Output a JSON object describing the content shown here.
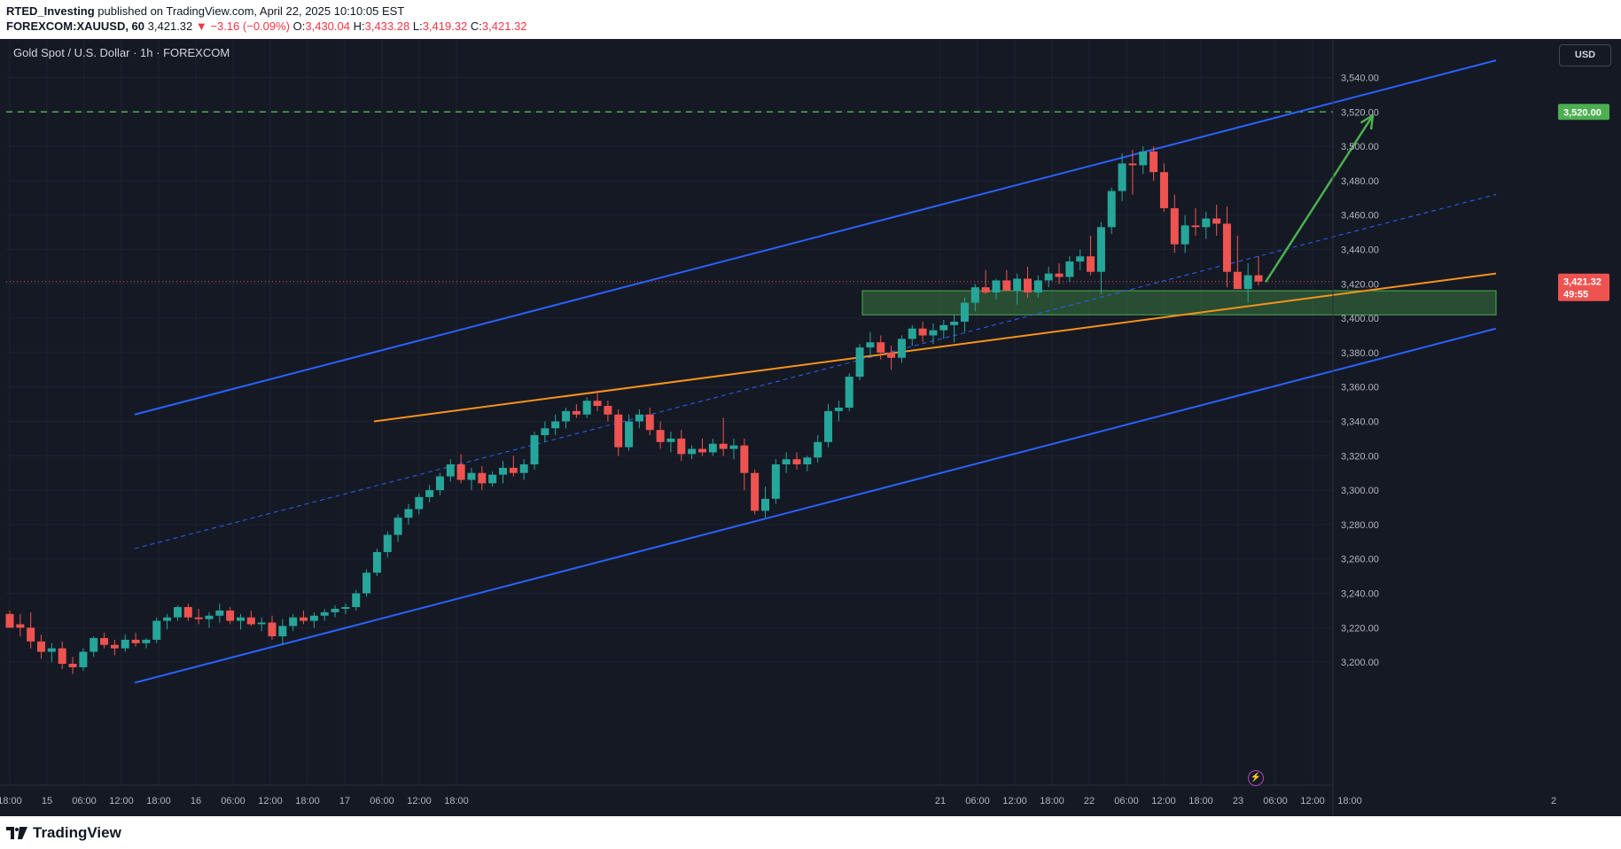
{
  "header": {
    "publisher": "RTED_Investing",
    "published_text": " published on TradingView.com, April 22, 2025 10:10:05 EST",
    "symbol": "FOREXCOM:XAUUSD, 60",
    "last": "3,421.32",
    "change": "−3.16 (−0.09%)",
    "o_label": "O:",
    "o_value": "3,430.04",
    "h_label": "H:",
    "h_value": "3,433.28",
    "l_label": "L:",
    "l_value": "3,419.32",
    "c_label": "C:",
    "c_value": "3,421.32"
  },
  "chart_title": "Gold Spot / U.S. Dollar · 1h · FOREXCOM",
  "currency": "USD",
  "footer_logo": "TradingView",
  "colors": {
    "background": "#151924",
    "up": "#26a69a",
    "down": "#ef5350",
    "channel": "#2962ff",
    "trendline": "#f7931a",
    "target": "#4caf50",
    "price_line": "#ef5350"
  },
  "chart_data": {
    "type": "candlestick",
    "title": "Gold Spot / U.S. Dollar · 1h · FOREXCOM",
    "ylim": [
      3190,
      3560
    ],
    "y_ticks": [
      "3,200.00",
      "3,220.00",
      "3,240.00",
      "3,260.00",
      "3,280.00",
      "3,300.00",
      "3,320.00",
      "3,340.00",
      "3,360.00",
      "3,380.00",
      "3,400.00",
      "3,420.00",
      "3,440.00",
      "3,460.00",
      "3,480.00",
      "3,500.00",
      "3,520.00",
      "3,540.00"
    ],
    "x_ticks": [
      "18:00",
      "15",
      "06:00",
      "12:00",
      "18:00",
      "16",
      "06:00",
      "12:00",
      "18:00",
      "17",
      "06:00",
      "12:00",
      "18:00",
      "21",
      "06:00",
      "12:00",
      "18:00",
      "22",
      "06:00",
      "12:00",
      "18:00",
      "23",
      "06:00",
      "12:00",
      "18:00",
      "2"
    ],
    "candles": [
      [
        3228,
        3230,
        3222,
        3220
      ],
      [
        3222,
        3228,
        3215,
        3220
      ],
      [
        3220,
        3229,
        3208,
        3212
      ],
      [
        3212,
        3216,
        3202,
        3206
      ],
      [
        3206,
        3211,
        3200,
        3208
      ],
      [
        3208,
        3212,
        3196,
        3199
      ],
      [
        3199,
        3203,
        3193,
        3197
      ],
      [
        3197,
        3208,
        3195,
        3206
      ],
      [
        3206,
        3215,
        3203,
        3214
      ],
      [
        3214,
        3217,
        3208,
        3210
      ],
      [
        3210,
        3213,
        3204,
        3208
      ],
      [
        3208,
        3216,
        3206,
        3213
      ],
      [
        3213,
        3217,
        3209,
        3211
      ],
      [
        3211,
        3214,
        3208,
        3213
      ],
      [
        3213,
        3226,
        3211,
        3224
      ],
      [
        3224,
        3228,
        3219,
        3226
      ],
      [
        3226,
        3233,
        3224,
        3232
      ],
      [
        3232,
        3234,
        3224,
        3226
      ],
      [
        3226,
        3231,
        3222,
        3225
      ],
      [
        3225,
        3229,
        3220,
        3227
      ],
      [
        3227,
        3234,
        3223,
        3230
      ],
      [
        3230,
        3232,
        3222,
        3224
      ],
      [
        3224,
        3228,
        3219,
        3226
      ],
      [
        3226,
        3230,
        3221,
        3222
      ],
      [
        3222,
        3226,
        3218,
        3223
      ],
      [
        3223,
        3227,
        3213,
        3215
      ],
      [
        3215,
        3225,
        3210,
        3221
      ],
      [
        3221,
        3228,
        3218,
        3226
      ],
      [
        3226,
        3230,
        3222,
        3224
      ],
      [
        3224,
        3229,
        3220,
        3227
      ],
      [
        3227,
        3231,
        3224,
        3229
      ],
      [
        3229,
        3233,
        3226,
        3231
      ],
      [
        3231,
        3234,
        3228,
        3232
      ],
      [
        3232,
        3242,
        3230,
        3240
      ],
      [
        3240,
        3254,
        3238,
        3252
      ],
      [
        3252,
        3266,
        3250,
        3264
      ],
      [
        3264,
        3276,
        3261,
        3274
      ],
      [
        3274,
        3286,
        3270,
        3284
      ],
      [
        3284,
        3292,
        3280,
        3289
      ],
      [
        3289,
        3298,
        3286,
        3296
      ],
      [
        3296,
        3303,
        3293,
        3300
      ],
      [
        3300,
        3310,
        3297,
        3308
      ],
      [
        3308,
        3318,
        3305,
        3315
      ],
      [
        3315,
        3321,
        3304,
        3306
      ],
      [
        3306,
        3313,
        3300,
        3310
      ],
      [
        3310,
        3314,
        3300,
        3304
      ],
      [
        3304,
        3311,
        3302,
        3309
      ],
      [
        3309,
        3317,
        3304,
        3313
      ],
      [
        3313,
        3320,
        3308,
        3310
      ],
      [
        3310,
        3318,
        3306,
        3315
      ],
      [
        3315,
        3334,
        3312,
        3332
      ],
      [
        3332,
        3340,
        3328,
        3336
      ],
      [
        3336,
        3344,
        3332,
        3340
      ],
      [
        3340,
        3348,
        3336,
        3346
      ],
      [
        3346,
        3350,
        3342,
        3344
      ],
      [
        3344,
        3354,
        3342,
        3352
      ],
      [
        3352,
        3358,
        3346,
        3349
      ],
      [
        3349,
        3352,
        3340,
        3344
      ],
      [
        3344,
        3347,
        3320,
        3325
      ],
      [
        3325,
        3344,
        3323,
        3340
      ],
      [
        3340,
        3347,
        3336,
        3344
      ],
      [
        3344,
        3348,
        3332,
        3335
      ],
      [
        3335,
        3340,
        3324,
        3328
      ],
      [
        3328,
        3334,
        3322,
        3330
      ],
      [
        3330,
        3335,
        3317,
        3321
      ],
      [
        3321,
        3326,
        3318,
        3324
      ],
      [
        3324,
        3330,
        3320,
        3322
      ],
      [
        3322,
        3330,
        3320,
        3327
      ],
      [
        3327,
        3342,
        3320,
        3324
      ],
      [
        3324,
        3330,
        3318,
        3326
      ],
      [
        3326,
        3330,
        3300,
        3310
      ],
      [
        3310,
        3312,
        3286,
        3288
      ],
      [
        3288,
        3302,
        3284,
        3295
      ],
      [
        3295,
        3318,
        3292,
        3315
      ],
      [
        3315,
        3322,
        3310,
        3318
      ],
      [
        3318,
        3322,
        3312,
        3315
      ],
      [
        3315,
        3320,
        3311,
        3319
      ],
      [
        3319,
        3332,
        3316,
        3328
      ],
      [
        3328,
        3350,
        3325,
        3346
      ],
      [
        3346,
        3352,
        3340,
        3348
      ],
      [
        3348,
        3368,
        3346,
        3366
      ],
      [
        3366,
        3385,
        3364,
        3383
      ],
      [
        3383,
        3392,
        3378,
        3386
      ],
      [
        3386,
        3390,
        3376,
        3380
      ],
      [
        3380,
        3384,
        3370,
        3377
      ],
      [
        3377,
        3390,
        3374,
        3388
      ],
      [
        3388,
        3396,
        3384,
        3394
      ],
      [
        3394,
        3398,
        3386,
        3390
      ],
      [
        3390,
        3397,
        3385,
        3393
      ],
      [
        3393,
        3399,
        3388,
        3396
      ],
      [
        3396,
        3402,
        3386,
        3398
      ],
      [
        3398,
        3412,
        3392,
        3409
      ],
      [
        3409,
        3420,
        3404,
        3418
      ],
      [
        3418,
        3428,
        3414,
        3415
      ],
      [
        3415,
        3423,
        3411,
        3422
      ],
      [
        3422,
        3428,
        3416,
        3416
      ],
      [
        3416,
        3426,
        3408,
        3423
      ],
      [
        3423,
        3430,
        3412,
        3415
      ],
      [
        3415,
        3425,
        3412,
        3422
      ],
      [
        3422,
        3430,
        3418,
        3426
      ],
      [
        3426,
        3432,
        3420,
        3424
      ],
      [
        3424,
        3436,
        3421,
        3433
      ],
      [
        3433,
        3440,
        3428,
        3436
      ],
      [
        3436,
        3448,
        3425,
        3427
      ],
      [
        3427,
        3456,
        3414,
        3453
      ],
      [
        3453,
        3476,
        3449,
        3474
      ],
      [
        3474,
        3496,
        3468,
        3490
      ],
      [
        3490,
        3498,
        3472,
        3489
      ],
      [
        3489,
        3500,
        3484,
        3497
      ],
      [
        3497,
        3500,
        3480,
        3485
      ],
      [
        3485,
        3490,
        3462,
        3464
      ],
      [
        3464,
        3472,
        3438,
        3443
      ],
      [
        3443,
        3460,
        3438,
        3454
      ],
      [
        3454,
        3464,
        3448,
        3453
      ],
      [
        3453,
        3462,
        3446,
        3458
      ],
      [
        3458,
        3466,
        3448,
        3455
      ],
      [
        3455,
        3465,
        3418,
        3427
      ],
      [
        3427,
        3448,
        3418,
        3417
      ],
      [
        3417,
        3432,
        3409,
        3425
      ],
      [
        3425,
        3436,
        3419,
        3421.32
      ]
    ],
    "channel_upper": [
      [
        "14 10:00",
        3344
      ],
      [
        "23 18:00",
        3550
      ]
    ],
    "channel_lower": [
      [
        "14 10:00",
        3188
      ],
      [
        "23 18:00",
        3394
      ]
    ],
    "channel_mid": [
      [
        "14 10:00",
        3266
      ],
      [
        "23 18:00",
        3472
      ]
    ],
    "trendline": [
      [
        "16 18:00",
        3340
      ],
      [
        "23 18:00",
        3426
      ]
    ],
    "support_zone": {
      "low": 3402,
      "high": 3416,
      "from": "21 03:00",
      "to": "23 18:00"
    },
    "target_arrow": [
      [
        "22 18:00",
        3421
      ],
      [
        "23 06:00",
        3518
      ]
    ],
    "target_level": 3520,
    "target_label": "3,520.00",
    "last_price": 3421.32,
    "last_price_label": "3,421.32",
    "countdown": "49:55"
  }
}
